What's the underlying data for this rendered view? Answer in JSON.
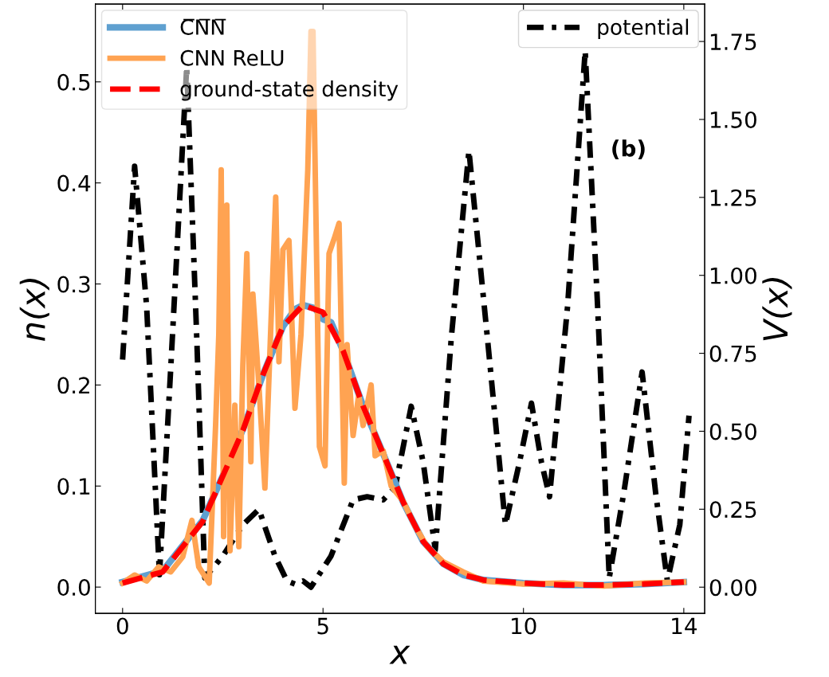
{
  "chart_data": {
    "type": "line",
    "xlabel": "x",
    "ylabel": "n(x)",
    "y2label": "V(x)",
    "annotations": [
      "(b)"
    ],
    "xlim": [
      -0.68,
      14.52
    ],
    "xticks": [
      0,
      5,
      10,
      14
    ],
    "ylim": [
      -0.026,
      0.577
    ],
    "yticks": [
      {
        "value": 0,
        "label": "0.0"
      },
      {
        "value": 0.1,
        "label": "0.1"
      },
      {
        "value": 0.2,
        "label": "0.2"
      },
      {
        "value": 0.3,
        "label": "0.3"
      },
      {
        "value": 0.4,
        "label": "0.4"
      },
      {
        "value": 0.5,
        "label": "0.5"
      }
    ],
    "y2lim": [
      -0.084,
      1.87
    ],
    "y2ticks": [
      {
        "value": 0,
        "label": "0.00"
      },
      {
        "value": 0.25,
        "label": "0.25"
      },
      {
        "value": 0.5,
        "label": "0.50"
      },
      {
        "value": 0.75,
        "label": "0.75"
      },
      {
        "value": 1,
        "label": "1.00"
      },
      {
        "value": 1.25,
        "label": "1.25"
      },
      {
        "value": 1.5,
        "label": "1.50"
      },
      {
        "value": 1.75,
        "label": "1.75"
      }
    ],
    "grid": false,
    "legend": "top left",
    "marker": "none",
    "series": [
      {
        "name": "C̅N̅N̅",
        "color": "#5fa0d0",
        "line_style": "solid",
        "x": [
          0,
          1,
          2,
          2.5,
          3,
          3.5,
          4,
          4.3,
          4.5,
          4.8,
          5,
          5.2,
          5.5,
          6,
          6.5,
          7,
          7.5,
          8,
          8.5,
          9,
          10,
          11,
          12,
          13,
          14
        ],
        "values": [
          0.005,
          0.016,
          0.066,
          0.11,
          0.156,
          0.21,
          0.258,
          0.275,
          0.279,
          0.276,
          0.265,
          0.262,
          0.234,
          0.179,
          0.132,
          0.084,
          0.045,
          0.023,
          0.012,
          0.007,
          0.004,
          0.002,
          0.002,
          0.003,
          0.005
        ]
      },
      {
        "name": "CNN ReLU",
        "color": "#ffa352",
        "line_style": "solid",
        "x": [
          0,
          0.3,
          0.6,
          0.9,
          1.2,
          1.5,
          1.73,
          1.9,
          2.16,
          2.32,
          2.4,
          2.46,
          2.52,
          2.6,
          2.68,
          2.8,
          2.9,
          3.0,
          3.1,
          3.2,
          3.25,
          3.4,
          3.55,
          3.7,
          3.82,
          3.9,
          4.0,
          4.15,
          4.3,
          4.45,
          4.62,
          4.7,
          4.75,
          4.85,
          4.91,
          5.05,
          5.15,
          5.28,
          5.4,
          5.53,
          5.6,
          5.75,
          5.89,
          6.0,
          6.2,
          6.3,
          6.5,
          6.7,
          7.0,
          7.3,
          7.6,
          8.0,
          8.5,
          9,
          10,
          11,
          12,
          13,
          14
        ],
        "values": [
          0.004,
          0.012,
          0.006,
          0.02,
          0.015,
          0.03,
          0.066,
          0.02,
          0.004,
          0.16,
          0.25,
          0.413,
          0.05,
          0.378,
          0.036,
          0.18,
          0.04,
          0.22,
          0.33,
          0.124,
          0.29,
          0.2,
          0.098,
          0.26,
          0.386,
          0.223,
          0.334,
          0.343,
          0.177,
          0.25,
          0.413,
          0.55,
          0.55,
          0.3,
          0.139,
          0.12,
          0.33,
          0.345,
          0.36,
          0.103,
          0.24,
          0.15,
          0.19,
          0.16,
          0.2,
          0.13,
          0.135,
          0.1,
          0.085,
          0.06,
          0.04,
          0.025,
          0.015,
          0.006,
          0.003,
          0.004,
          0.001,
          0.004,
          0.005
        ]
      },
      {
        "name": "ground-state density",
        "color": "#ff0000",
        "line_style": "dashed",
        "x": [
          0,
          1,
          2,
          2.5,
          3,
          3.5,
          4,
          4.5,
          5,
          5.5,
          6,
          6.5,
          7,
          7.5,
          8,
          8.5,
          9,
          10,
          11,
          12,
          13,
          14
        ],
        "values": [
          0.004,
          0.015,
          0.065,
          0.11,
          0.155,
          0.21,
          0.258,
          0.279,
          0.272,
          0.234,
          0.179,
          0.132,
          0.084,
          0.045,
          0.023,
          0.012,
          0.007,
          0.004,
          0.002,
          0.002,
          0.003,
          0.005
        ]
      },
      {
        "name": "potential",
        "color": "#000000",
        "line_style": "dashdot",
        "axis": "y2",
        "x": [
          0,
          0.3,
          0.6,
          0.92,
          1.2,
          1.6,
          1.85,
          2.05,
          2.5,
          3.0,
          3.4,
          3.8,
          4.1,
          4.3,
          4.5,
          4.7,
          5.2,
          5.75,
          6.1,
          6.5,
          6.8,
          7.2,
          7.5,
          7.8,
          8.2,
          8.64,
          9.1,
          9.55,
          9.9,
          10.2,
          10.45,
          10.65,
          11.1,
          11.54,
          11.85,
          12.14,
          12.5,
          12.96,
          13.3,
          13.59,
          13.9,
          14.13
        ],
        "values": [
          0.73,
          1.35,
          0.9,
          0.04,
          0.7,
          1.67,
          0.8,
          0.03,
          0.1,
          0.2,
          0.25,
          0.1,
          0.02,
          0.01,
          0.02,
          0.0,
          0.1,
          0.28,
          0.29,
          0.28,
          0.32,
          0.58,
          0.4,
          0.12,
          0.8,
          1.4,
          0.8,
          0.2,
          0.4,
          0.59,
          0.4,
          0.29,
          0.9,
          1.72,
          0.9,
          0.03,
          0.3,
          0.69,
          0.3,
          0.02,
          0.2,
          0.55
        ]
      }
    ]
  }
}
